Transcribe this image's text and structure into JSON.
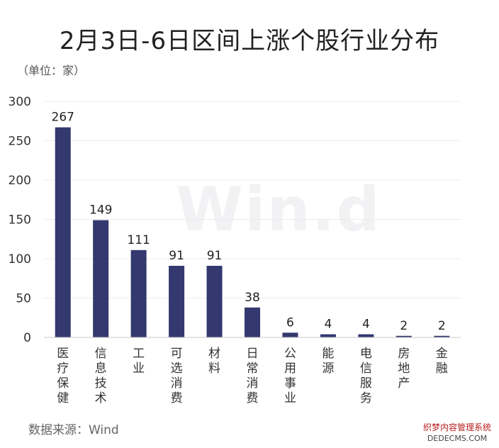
{
  "header": {
    "title": "2月3日-6日区间上涨个股行业分布",
    "unit": "（单位：家）"
  },
  "watermark": "Win.d",
  "footer": {
    "source": "数据来源：Wind",
    "corner_line1": "织梦内容管理系统",
    "corner_line2": "DEDECMS.COM"
  },
  "colors": {
    "bar": "#33386e",
    "axis": "#c8c8c8",
    "grid": "#ececec"
  },
  "chart_data": {
    "type": "bar",
    "title": "2月3日-6日区间上涨个股行业分布",
    "ylabel": "（单位：家）",
    "xlabel": "",
    "categories": [
      "医疗保健",
      "信息技术",
      "工业",
      "可选消费",
      "材料",
      "日常消费",
      "公用事业",
      "能源",
      "电信服务",
      "房地产",
      "金融"
    ],
    "values": [
      267,
      149,
      111,
      91,
      91,
      38,
      6,
      4,
      4,
      2,
      2
    ],
    "ylim": [
      0,
      300
    ],
    "yticks": [
      0,
      50,
      100,
      150,
      200,
      250,
      300
    ],
    "grid": true,
    "legend": "none"
  }
}
